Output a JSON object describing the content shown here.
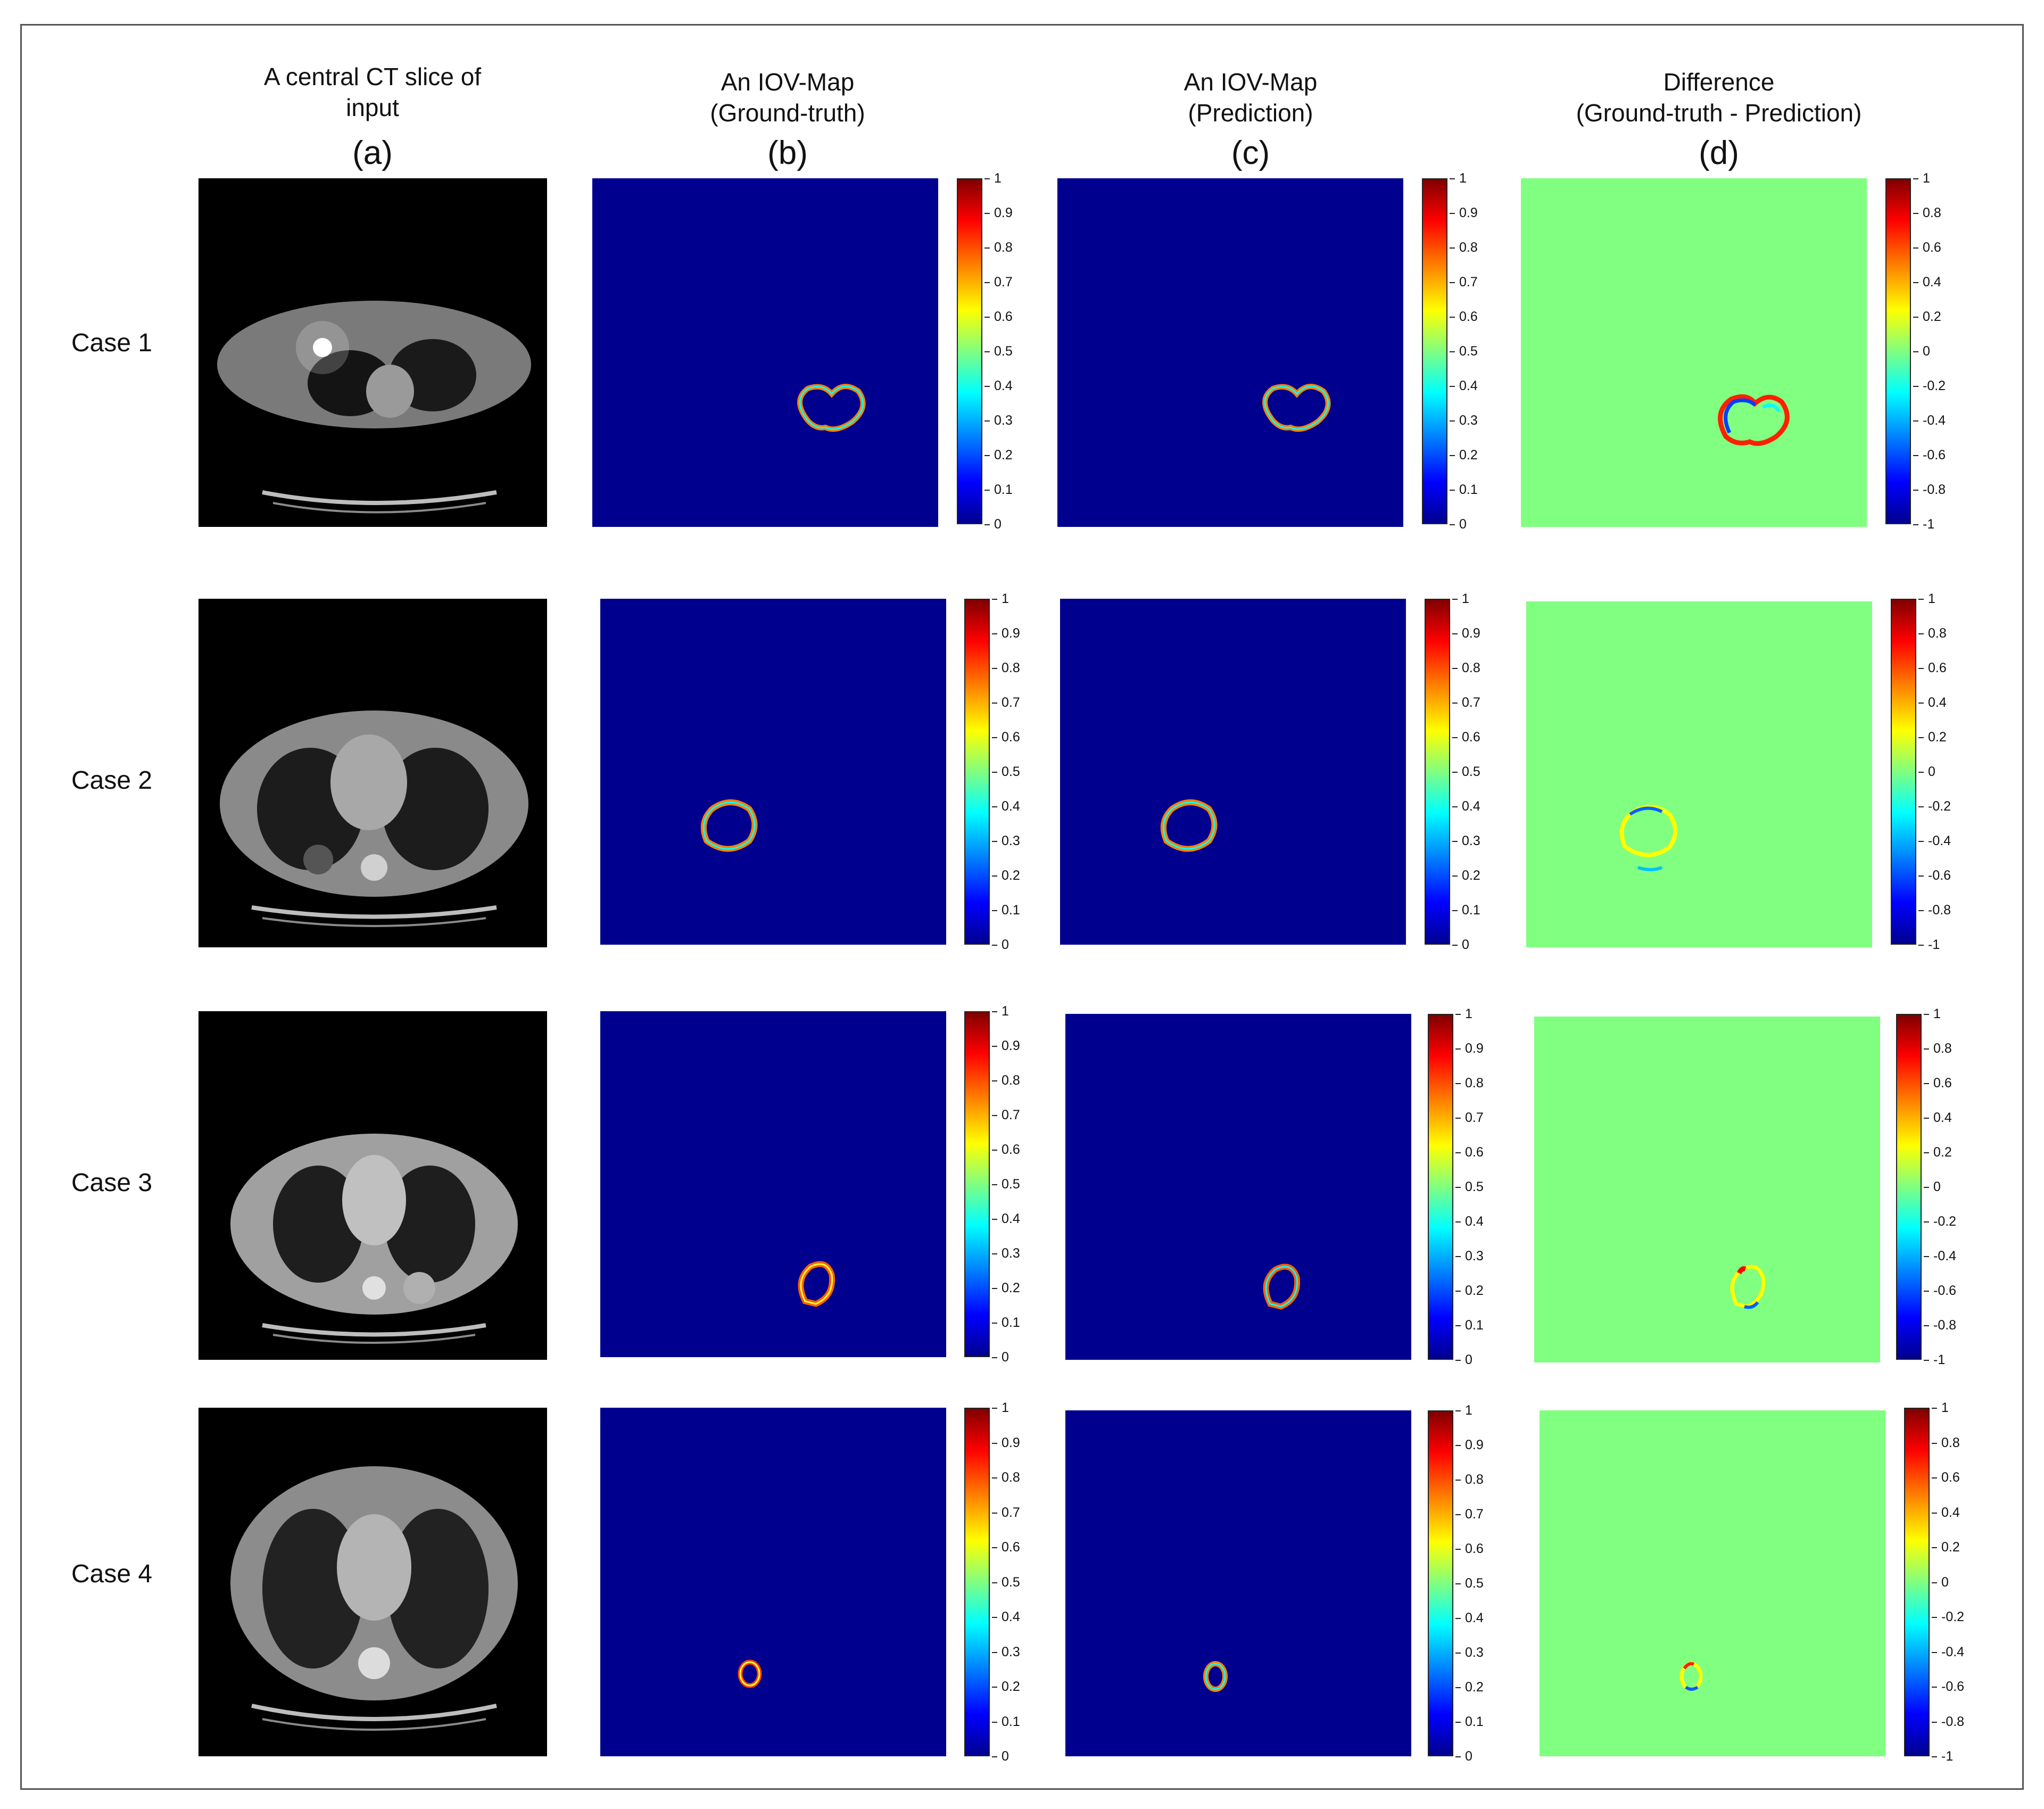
{
  "columns": [
    {
      "title": "A central CT slice of\ninput",
      "letter": "(a)"
    },
    {
      "title": "An IOV-Map\n(Ground-truth)",
      "letter": "(b)"
    },
    {
      "title": "An IOV-Map\n(Prediction)",
      "letter": "(c)"
    },
    {
      "title": "Difference\n(Ground-truth - Prediction)",
      "letter": "(d)"
    }
  ],
  "rows": [
    {
      "label": "Case 1"
    },
    {
      "label": "Case 2"
    },
    {
      "label": "Case 3"
    },
    {
      "label": "Case 4"
    }
  ],
  "colorbars": {
    "iov_ticks": [
      "1",
      "0.9",
      "0.8",
      "0.7",
      "0.6",
      "0.5",
      "0.4",
      "0.3",
      "0.2",
      "0.1",
      "0"
    ],
    "diff_ticks": [
      "1",
      "0.8",
      "0.6",
      "0.4",
      "0.2",
      "0",
      "-0.2",
      "-0.4",
      "-0.6",
      "-0.8",
      "-1"
    ],
    "colormap": "jet"
  },
  "colors": {
    "iov_background": "#00008f",
    "diff_background": "#80ff80",
    "ct_background": "#000000"
  }
}
